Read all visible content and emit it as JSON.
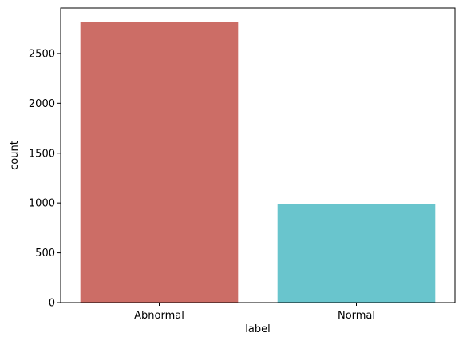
{
  "chart_data": {
    "type": "bar",
    "categories": [
      "Abnormal",
      "Normal"
    ],
    "values": [
      2815,
      990
    ],
    "colors": [
      "#cc6d66",
      "#69c5cd"
    ],
    "xlabel": "label",
    "ylabel": "count",
    "ylim": [
      0,
      2956
    ],
    "yticks": [
      0,
      500,
      1000,
      1500,
      2000,
      2500
    ],
    "grid": false,
    "legend": "none"
  }
}
